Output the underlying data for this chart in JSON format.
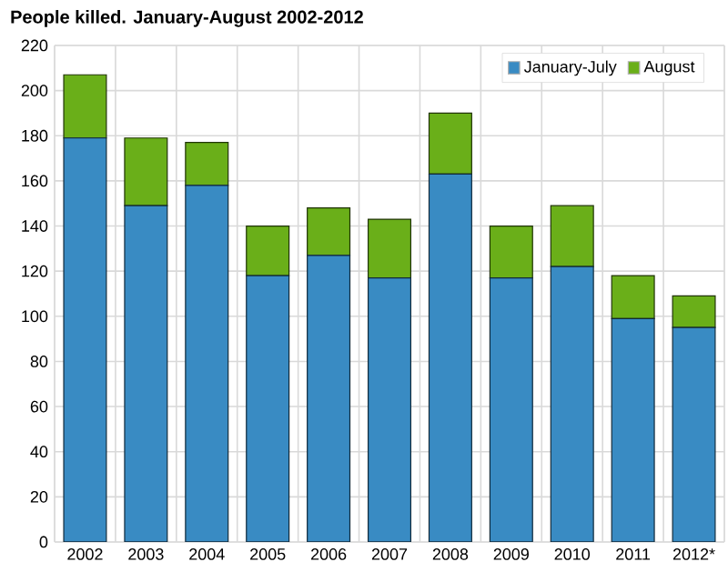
{
  "chart_data": {
    "type": "bar",
    "title": "People killed. January-August 2002-2012",
    "stacked": true,
    "categories": [
      "2002",
      "2003",
      "2004",
      "2005",
      "2006",
      "2007",
      "2008",
      "2009",
      "2010",
      "2011",
      "2012*"
    ],
    "series": [
      {
        "name": "January-July",
        "color": "#398bc3",
        "values": [
          179,
          149,
          158,
          118,
          127,
          117,
          163,
          117,
          122,
          99,
          95
        ]
      },
      {
        "name": "August",
        "color": "#6aaf19",
        "values": [
          28,
          30,
          19,
          22,
          21,
          26,
          27,
          23,
          27,
          19,
          14
        ]
      }
    ],
    "ylim": [
      0,
      220
    ],
    "yticks": [
      0,
      20,
      40,
      60,
      80,
      100,
      120,
      140,
      160,
      180,
      200,
      220
    ],
    "grid": true,
    "legend": "top right"
  }
}
